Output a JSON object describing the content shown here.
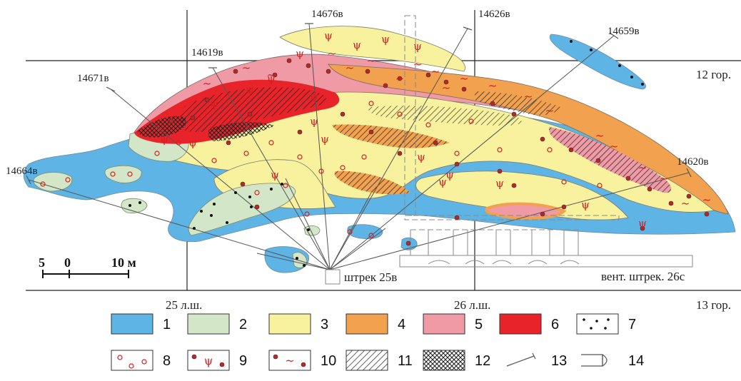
{
  "colors": {
    "c1": "#5fb4e6",
    "c2": "#d3e6c7",
    "c3": "#f8f19e",
    "c4": "#f2a24e",
    "c5": "#ef9aa5",
    "c6": "#e8232a",
    "dot_red": "#c22323",
    "border": "#7a7a6a"
  },
  "boreholes": [
    {
      "id": "bh-14676",
      "label": "14676в"
    },
    {
      "id": "bh-14626",
      "label": "14626в"
    },
    {
      "id": "bh-14659",
      "label": "14659в"
    },
    {
      "id": "bh-14619",
      "label": "14619в"
    },
    {
      "id": "bh-14671",
      "label": "14671в"
    },
    {
      "id": "bh-14664",
      "label": "14664в"
    },
    {
      "id": "bh-14620",
      "label": "14620в"
    }
  ],
  "levels": {
    "upper": "12 гор.",
    "lower": "13 гор."
  },
  "profile_lines": {
    "left": "25 л.ш.",
    "right": "26 л.ш."
  },
  "workings": {
    "drift": "штрек 25в",
    "vent_drift": "вент. штрек. 26с"
  },
  "scale": {
    "t0": "5",
    "t1": "0",
    "t2": "10 м"
  },
  "legend": [
    {
      "num": "1",
      "type": "fill",
      "color": "c1"
    },
    {
      "num": "2",
      "type": "fill",
      "color": "c2"
    },
    {
      "num": "3",
      "type": "fill",
      "color": "c3"
    },
    {
      "num": "4",
      "type": "fill",
      "color": "c4"
    },
    {
      "num": "5",
      "type": "fill",
      "color": "c5"
    },
    {
      "num": "6",
      "type": "fill",
      "color": "c6"
    },
    {
      "num": "7",
      "type": "dots"
    },
    {
      "num": "8",
      "type": "rings"
    },
    {
      "num": "9",
      "type": "psi"
    },
    {
      "num": "10",
      "type": "tilde"
    },
    {
      "num": "11",
      "type": "hatch"
    },
    {
      "num": "12",
      "type": "crosshatch"
    },
    {
      "num": "13",
      "type": "borehole"
    },
    {
      "num": "14",
      "type": "working"
    }
  ]
}
